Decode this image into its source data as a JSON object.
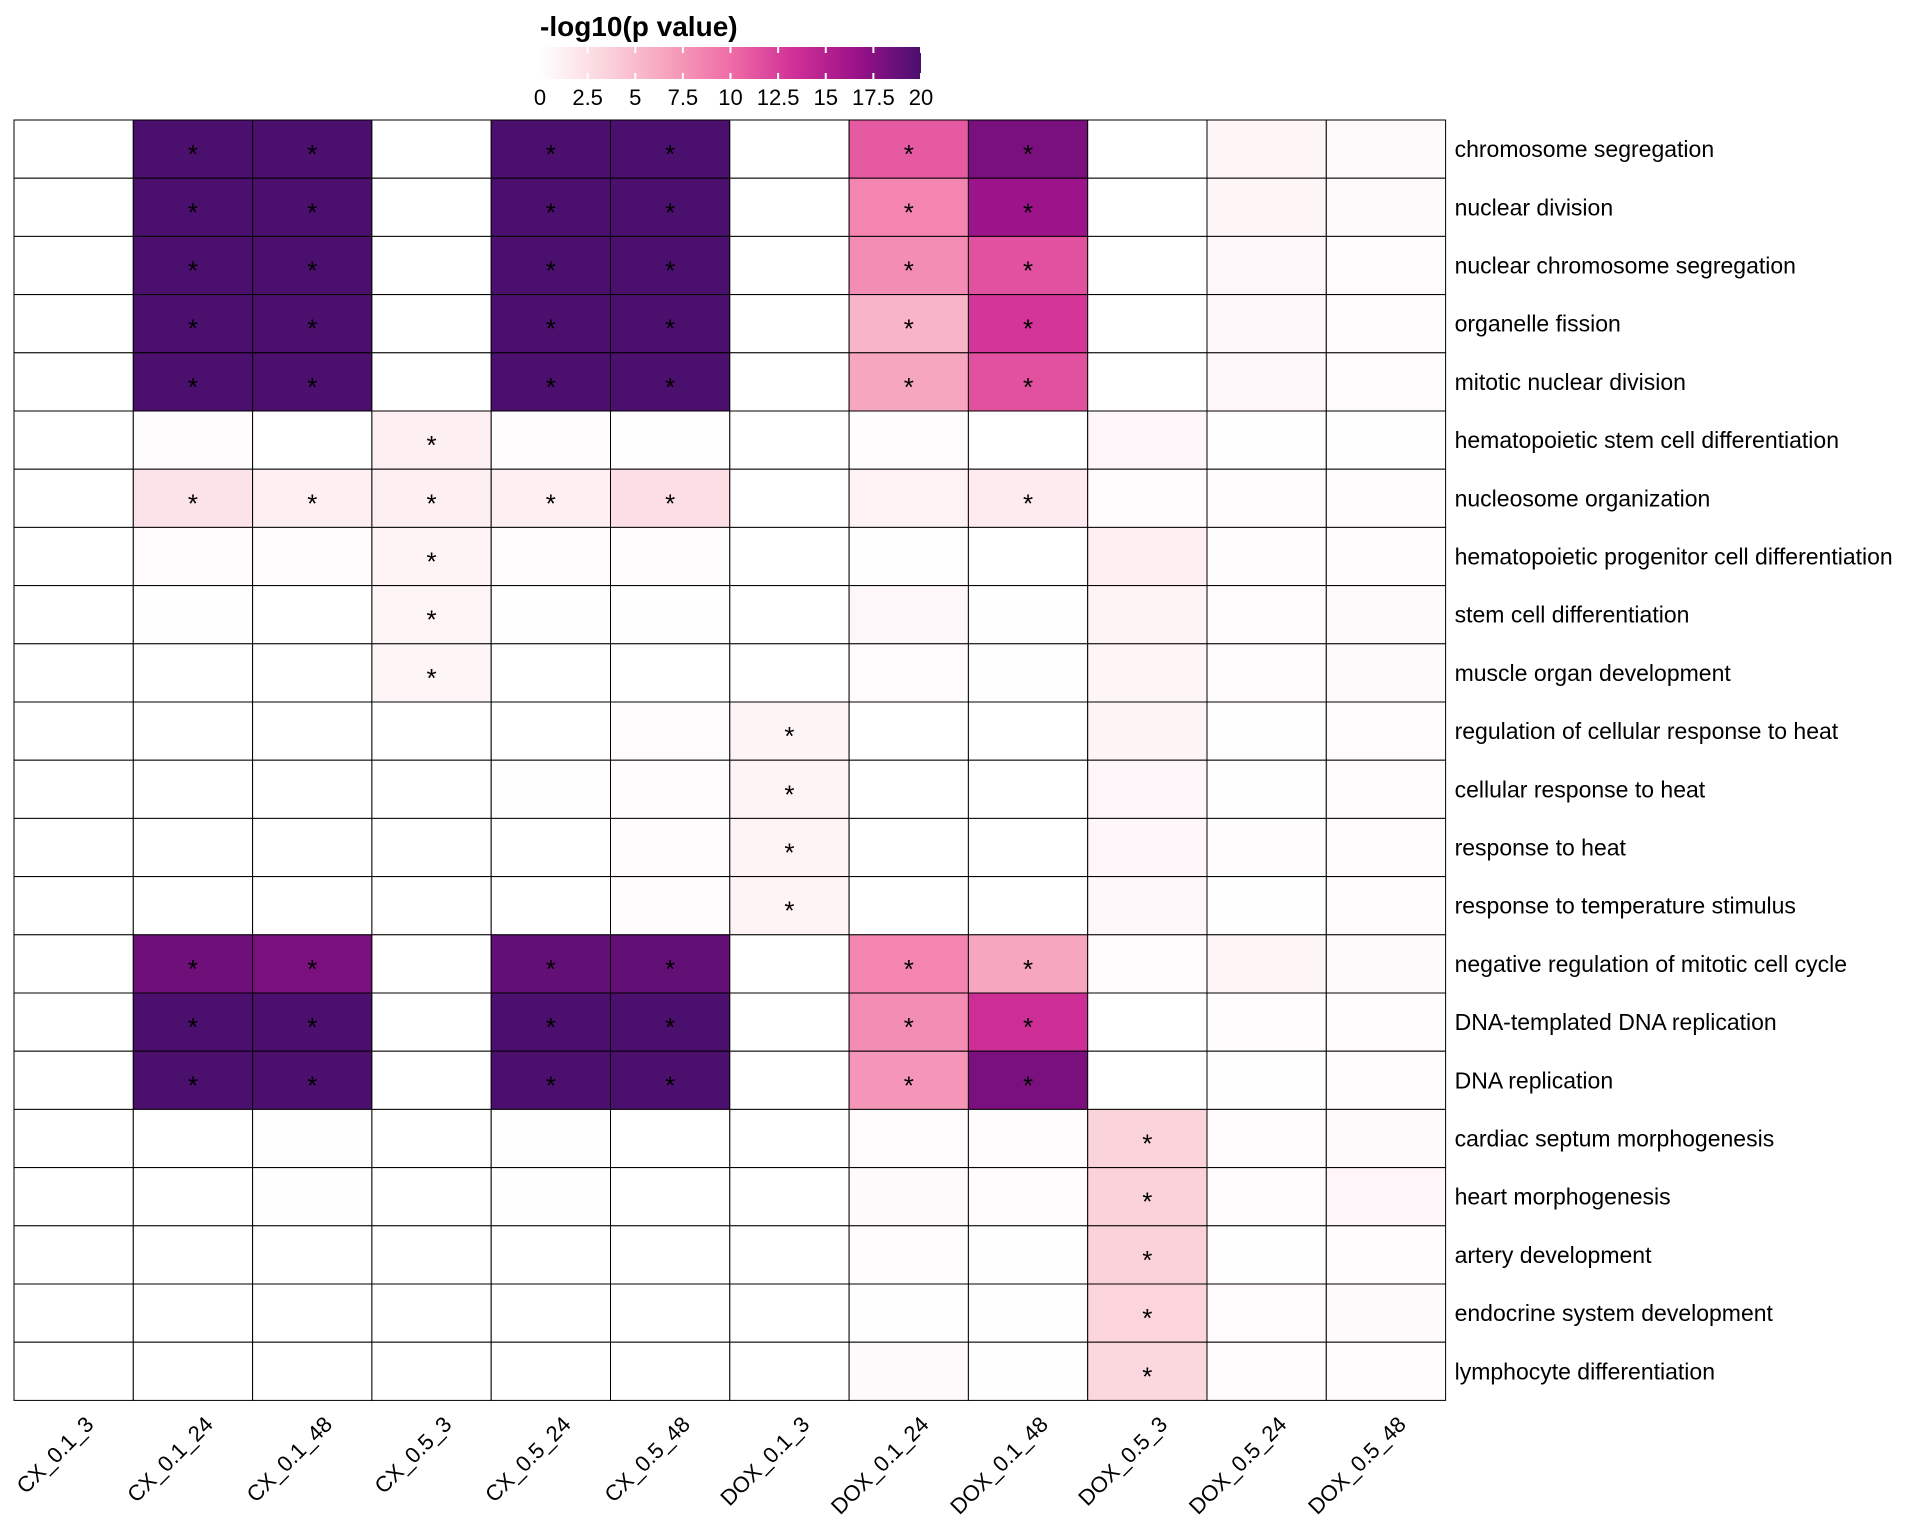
{
  "chart_data": {
    "type": "heatmap",
    "legend": {
      "title": "-log10(p value)",
      "min": 0,
      "max": 20,
      "ticks": [
        0,
        2.5,
        5,
        7.5,
        10,
        12.5,
        15,
        17.5,
        20
      ],
      "tick_labels": [
        "0",
        "2.5",
        "5",
        "7.5",
        "10",
        "12.5",
        "15",
        "17.5",
        "20"
      ],
      "colors": [
        "#ffffff",
        "#fbd5dd",
        "#f7a3bd",
        "#ef6ca6",
        "#d03096",
        "#9a1189",
        "#4b0f6e"
      ]
    },
    "columns": [
      "CX_0.1_3",
      "CX_0.1_24",
      "CX_0.1_48",
      "CX_0.5_3",
      "CX_0.5_24",
      "CX_0.5_48",
      "DOX_0.1_3",
      "DOX_0.1_24",
      "DOX_0.1_48",
      "DOX_0.5_3",
      "DOX_0.5_24",
      "DOX_0.5_48"
    ],
    "rows": [
      "chromosome segregation",
      "nuclear division",
      "nuclear chromosome segregation",
      "organelle fission",
      "mitotic nuclear division",
      "hematopoietic stem cell differentiation",
      "nucleosome organization",
      "hematopoietic progenitor cell differentiation",
      "stem cell differentiation",
      "muscle organ development",
      "regulation of cellular response to heat",
      "cellular response to heat",
      "response to heat",
      "response to temperature stimulus",
      "negative regulation of mitotic cell cycle",
      "DNA-templated DNA replication",
      "DNA replication",
      "cardiac septum morphogenesis",
      "heart morphogenesis",
      "artery development",
      "endocrine system development",
      "lymphocyte differentiation"
    ],
    "values": [
      [
        0,
        20,
        20,
        0,
        20,
        20,
        0,
        11,
        18,
        0,
        0.8,
        0.5
      ],
      [
        0,
        20,
        20,
        0,
        20,
        20,
        0,
        8.5,
        16.5,
        0,
        0.8,
        0.5
      ],
      [
        0,
        20,
        20,
        0,
        20,
        20,
        0,
        8,
        11.5,
        0,
        0.6,
        0.4
      ],
      [
        0,
        20,
        20,
        0,
        20,
        20,
        0,
        5.5,
        13,
        0,
        0.6,
        0.4
      ],
      [
        0,
        20,
        20,
        0,
        20,
        20,
        0,
        6.5,
        11.5,
        0,
        0.6,
        0.4
      ],
      [
        0,
        0.2,
        0,
        1.3,
        0.2,
        0.1,
        0,
        0.2,
        0,
        0.7,
        0.1,
        0.1
      ],
      [
        0,
        2.2,
        1.3,
        1.3,
        1.3,
        2.6,
        0,
        1,
        1.6,
        0.2,
        0.4,
        0.2
      ],
      [
        0,
        0.3,
        0.2,
        0.9,
        0.3,
        0.2,
        0,
        0.1,
        0,
        1.3,
        0.2,
        0.2
      ],
      [
        0,
        0.1,
        0,
        0.8,
        0.1,
        0.1,
        0,
        0.6,
        0.1,
        0.9,
        0.3,
        0.5
      ],
      [
        0,
        0,
        0,
        0.8,
        0,
        0,
        0,
        0.4,
        0.1,
        0.8,
        0.2,
        0.5
      ],
      [
        0,
        0,
        0,
        0,
        0,
        0.2,
        0.9,
        0,
        0,
        0.9,
        0.1,
        0.2
      ],
      [
        0,
        0,
        0,
        0,
        0.1,
        0.2,
        0.9,
        0,
        0,
        0.7,
        0.1,
        0.4
      ],
      [
        0,
        0,
        0,
        0,
        0,
        0.2,
        0.9,
        0,
        0,
        0.7,
        0.2,
        0.4
      ],
      [
        0,
        0,
        0,
        0,
        0,
        0.2,
        0.9,
        0,
        0,
        0.6,
        0.1,
        0.2
      ],
      [
        0,
        18.5,
        18,
        0,
        19,
        19,
        0,
        8.5,
        6.5,
        0.2,
        0.8,
        0.5
      ],
      [
        0,
        20,
        20,
        0,
        20,
        20,
        0,
        8,
        13.5,
        0,
        0.2,
        0.3
      ],
      [
        0,
        20,
        20,
        0,
        20,
        20,
        0,
        7.5,
        18,
        0,
        0.1,
        0.3
      ],
      [
        0,
        0,
        0.1,
        0,
        0.1,
        0,
        0,
        0.4,
        0.2,
        3.5,
        0.3,
        0.5
      ],
      [
        0,
        0,
        0.1,
        0,
        0.1,
        0,
        0,
        0.5,
        0.2,
        3.6,
        0.4,
        0.7
      ],
      [
        0,
        0,
        0,
        0,
        0,
        0,
        0,
        0.2,
        0.1,
        3.6,
        0.1,
        0.2
      ],
      [
        0,
        0,
        0,
        0,
        0,
        0,
        0,
        0.1,
        0.1,
        3.4,
        0.3,
        0.5
      ],
      [
        0,
        0,
        0,
        0,
        0,
        0,
        0,
        0.5,
        0.1,
        3.2,
        0.2,
        0.2
      ]
    ],
    "significant": [
      [
        0,
        1,
        1,
        0,
        1,
        1,
        0,
        1,
        1,
        0,
        0,
        0
      ],
      [
        0,
        1,
        1,
        0,
        1,
        1,
        0,
        1,
        1,
        0,
        0,
        0
      ],
      [
        0,
        1,
        1,
        0,
        1,
        1,
        0,
        1,
        1,
        0,
        0,
        0
      ],
      [
        0,
        1,
        1,
        0,
        1,
        1,
        0,
        1,
        1,
        0,
        0,
        0
      ],
      [
        0,
        1,
        1,
        0,
        1,
        1,
        0,
        1,
        1,
        0,
        0,
        0
      ],
      [
        0,
        0,
        0,
        1,
        0,
        0,
        0,
        0,
        0,
        0,
        0,
        0
      ],
      [
        0,
        1,
        1,
        1,
        1,
        1,
        0,
        0,
        1,
        0,
        0,
        0
      ],
      [
        0,
        0,
        0,
        1,
        0,
        0,
        0,
        0,
        0,
        0,
        0,
        0
      ],
      [
        0,
        0,
        0,
        1,
        0,
        0,
        0,
        0,
        0,
        0,
        0,
        0
      ],
      [
        0,
        0,
        0,
        1,
        0,
        0,
        0,
        0,
        0,
        0,
        0,
        0
      ],
      [
        0,
        0,
        0,
        0,
        0,
        0,
        1,
        0,
        0,
        0,
        0,
        0
      ],
      [
        0,
        0,
        0,
        0,
        0,
        0,
        1,
        0,
        0,
        0,
        0,
        0
      ],
      [
        0,
        0,
        0,
        0,
        0,
        0,
        1,
        0,
        0,
        0,
        0,
        0
      ],
      [
        0,
        0,
        0,
        0,
        0,
        0,
        1,
        0,
        0,
        0,
        0,
        0
      ],
      [
        0,
        1,
        1,
        0,
        1,
        1,
        0,
        1,
        1,
        0,
        0,
        0
      ],
      [
        0,
        1,
        1,
        0,
        1,
        1,
        0,
        1,
        1,
        0,
        0,
        0
      ],
      [
        0,
        1,
        1,
        0,
        1,
        1,
        0,
        1,
        1,
        0,
        0,
        0
      ],
      [
        0,
        0,
        0,
        0,
        0,
        0,
        0,
        0,
        0,
        1,
        0,
        0
      ],
      [
        0,
        0,
        0,
        0,
        0,
        0,
        0,
        0,
        0,
        1,
        0,
        0
      ],
      [
        0,
        0,
        0,
        0,
        0,
        0,
        0,
        0,
        0,
        1,
        0,
        0
      ],
      [
        0,
        0,
        0,
        0,
        0,
        0,
        0,
        0,
        0,
        1,
        0,
        0
      ],
      [
        0,
        0,
        0,
        0,
        0,
        0,
        0,
        0,
        0,
        1,
        0,
        0
      ]
    ],
    "significance_marker": "*",
    "border_color": "#000000"
  }
}
